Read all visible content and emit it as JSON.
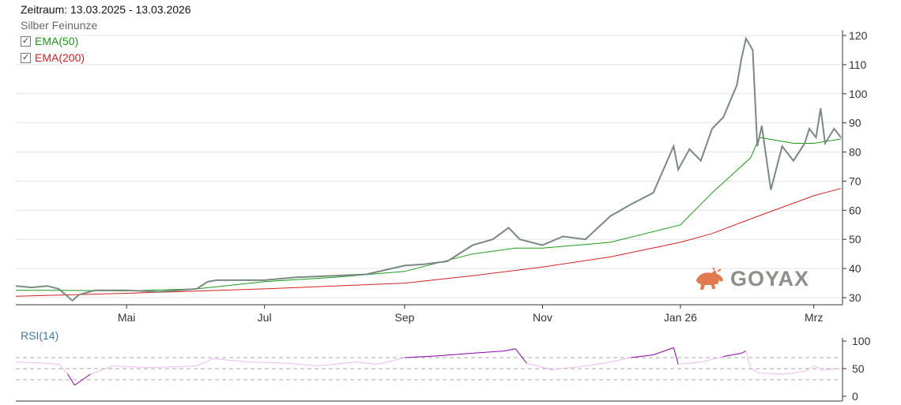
{
  "header": {
    "period": "Zeitraum: 13.03.2025 - 13.03.2026",
    "instrument": "Silber Feinunze"
  },
  "legend": [
    {
      "label": "EMA(50)",
      "color": "#1a9a1a",
      "checked": true
    },
    {
      "label": "EMA(200)",
      "color": "#d62020",
      "checked": true
    }
  ],
  "logo": {
    "text": "GOYAX",
    "icon": "bull-icon",
    "icon_color": "#e07a50"
  },
  "colors": {
    "price": "#7a8a80",
    "ema50": "#1a9a1a",
    "ema200": "#d62020",
    "rsi": "#8a00a8",
    "rsi_light": "#f0b8f5",
    "grid": "#e4e4e4"
  },
  "chart_data": [
    {
      "type": "line",
      "title": "Silber Feinunze",
      "x_tick_labels": [
        "Mai",
        "Jul",
        "Sep",
        "Nov",
        "Jan 26",
        "Mrz"
      ],
      "x_tick_dates": [
        "2025-05-01",
        "2025-07-01",
        "2025-09-01",
        "2025-11-01",
        "2026-01-01",
        "2026-03-01"
      ],
      "ylim": [
        28,
        123
      ],
      "y_ticks": [
        30,
        40,
        50,
        60,
        70,
        80,
        90,
        100,
        110,
        120
      ],
      "grid": true,
      "series": [
        {
          "name": "Silber Feinunze",
          "x": [
            "2025-03-13",
            "2025-03-20",
            "2025-03-27",
            "2025-04-01",
            "2025-04-04",
            "2025-04-07",
            "2025-04-10",
            "2025-04-17",
            "2025-04-24",
            "2025-05-01",
            "2025-05-15",
            "2025-06-01",
            "2025-06-06",
            "2025-06-10",
            "2025-06-20",
            "2025-07-01",
            "2025-07-15",
            "2025-08-01",
            "2025-08-15",
            "2025-09-01",
            "2025-09-10",
            "2025-09-20",
            "2025-10-01",
            "2025-10-10",
            "2025-10-17",
            "2025-10-22",
            "2025-11-01",
            "2025-11-10",
            "2025-11-20",
            "2025-12-01",
            "2025-12-10",
            "2025-12-20",
            "2025-12-29",
            "2025-12-31",
            "2026-01-05",
            "2026-01-10",
            "2026-01-15",
            "2026-01-20",
            "2026-01-26",
            "2026-01-28",
            "2026-01-30",
            "2026-02-02",
            "2026-02-04",
            "2026-02-06",
            "2026-02-10",
            "2026-02-15",
            "2026-02-20",
            "2026-02-25",
            "2026-02-27",
            "2026-03-02",
            "2026-03-04",
            "2026-03-06",
            "2026-03-10",
            "2026-03-13"
          ],
          "y": [
            34,
            33.5,
            34,
            33,
            31,
            29,
            31,
            32.5,
            32.5,
            32.5,
            32,
            33,
            35.5,
            36,
            36,
            36,
            37,
            37.5,
            38,
            41,
            41.5,
            42.5,
            48,
            50,
            54,
            50,
            48,
            51,
            50,
            58,
            62,
            66,
            82,
            74,
            81,
            77,
            88,
            92,
            103,
            112,
            119,
            115,
            82,
            89,
            67,
            82,
            77,
            83,
            88,
            85,
            95,
            83,
            88,
            85
          ]
        },
        {
          "name": "EMA(50)",
          "x": [
            "2025-03-13",
            "2025-04-01",
            "2025-05-01",
            "2025-06-01",
            "2025-07-01",
            "2025-08-01",
            "2025-09-01",
            "2025-10-01",
            "2025-10-20",
            "2025-11-01",
            "2025-12-01",
            "2026-01-01",
            "2026-01-15",
            "2026-02-01",
            "2026-02-05",
            "2026-02-20",
            "2026-03-01",
            "2026-03-13"
          ],
          "y": [
            32.5,
            32.5,
            32.3,
            33,
            35.5,
            37,
            39,
            45,
            47,
            47,
            49,
            55,
            66,
            78,
            85,
            83,
            83,
            84.5
          ]
        },
        {
          "name": "EMA(200)",
          "x": [
            "2025-03-13",
            "2025-05-01",
            "2025-07-01",
            "2025-09-01",
            "2025-10-01",
            "2025-11-01",
            "2025-12-01",
            "2026-01-01",
            "2026-01-15",
            "2026-02-01",
            "2026-02-15",
            "2026-03-01",
            "2026-03-13"
          ],
          "y": [
            30.5,
            31.5,
            33,
            35,
            37.5,
            40.5,
            44,
            49,
            52,
            57,
            61,
            65,
            67.5
          ]
        }
      ]
    },
    {
      "type": "line",
      "title": "RSI(14)",
      "x_tick_labels": [],
      "ylim": [
        -5,
        105
      ],
      "y_ticks": [
        0,
        50,
        100
      ],
      "reference_lines": [
        30,
        50,
        70
      ],
      "grid": false,
      "series": [
        {
          "name": "RSI(14)",
          "x": [
            "2025-03-13",
            "2025-03-25",
            "2025-04-01",
            "2025-04-05",
            "2025-04-08",
            "2025-04-15",
            "2025-04-25",
            "2025-05-10",
            "2025-06-01",
            "2025-06-08",
            "2025-06-25",
            "2025-07-10",
            "2025-07-25",
            "2025-08-10",
            "2025-08-20",
            "2025-09-01",
            "2025-09-15",
            "2025-10-01",
            "2025-10-15",
            "2025-10-20",
            "2025-10-25",
            "2025-11-05",
            "2025-11-20",
            "2025-12-01",
            "2025-12-10",
            "2025-12-20",
            "2025-12-29",
            "2025-12-31",
            "2026-01-10",
            "2026-01-20",
            "2026-01-28",
            "2026-01-30",
            "2026-02-01",
            "2026-02-05",
            "2026-02-15",
            "2026-02-25",
            "2026-03-01",
            "2026-03-05",
            "2026-03-13"
          ],
          "y": [
            62,
            60,
            58,
            40,
            20,
            40,
            55,
            52,
            55,
            68,
            62,
            60,
            55,
            62,
            58,
            70,
            73,
            78,
            82,
            86,
            60,
            48,
            55,
            62,
            70,
            75,
            88,
            58,
            62,
            72,
            78,
            82,
            50,
            42,
            40,
            45,
            55,
            48,
            50
          ]
        }
      ]
    }
  ]
}
